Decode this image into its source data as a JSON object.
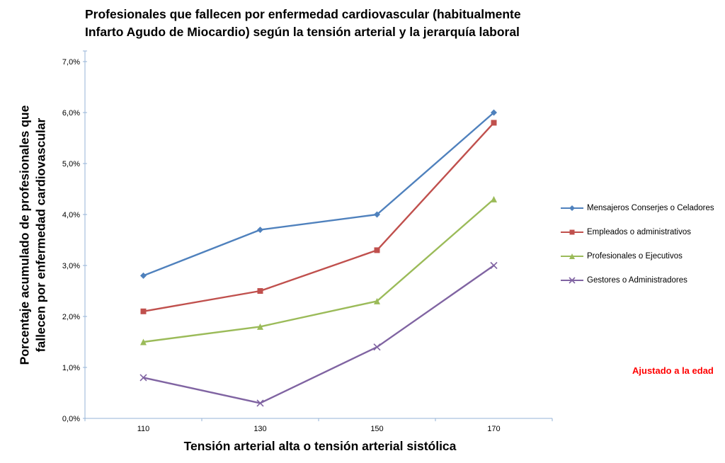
{
  "title": {
    "line1": "Profesionales que fallecen por enfermedad cardiovascular (habitualmente",
    "line2": "Infarto Agudo de Miocardio) según la tensión arterial y la jerarquía laboral"
  },
  "annotation": "Ajustado a la edad",
  "chart_data": {
    "type": "line",
    "title": "Profesionales que fallecen por enfermedad cardiovascular (habitualmente Infarto Agudo de Miocardio) según la tensión arterial y la jerarquía laboral",
    "categories": [
      "110",
      "130",
      "150",
      "170"
    ],
    "series": [
      {
        "name": "Mensajeros Conserjes o Celadores",
        "color": "#4F81BD",
        "marker": "diamond",
        "values": [
          2.8,
          3.7,
          4.0,
          6.0
        ]
      },
      {
        "name": "Empleados o administrativos",
        "color": "#C0504D",
        "marker": "square",
        "values": [
          2.1,
          2.5,
          3.3,
          5.8
        ]
      },
      {
        "name": "Profesionales o Ejecutivos",
        "color": "#9BBB59",
        "marker": "triangle",
        "values": [
          1.5,
          1.8,
          2.3,
          4.3
        ]
      },
      {
        "name": "Gestores o Administradores",
        "color": "#8064A2",
        "marker": "x",
        "values": [
          0.8,
          0.3,
          1.4,
          3.0
        ]
      }
    ],
    "xlabel": "Tensión arterial alta o tensión arterial sistólica",
    "ylabel_line1": "Porcentaje acumulado de profesionales que",
    "ylabel_line2": "fallecen por enfermedad cardiovascular",
    "ylim": [
      0,
      7
    ],
    "ytick_step": 1,
    "ytick_labels": [
      "0,0%",
      "1,0%",
      "2,0%",
      "3,0%",
      "4,0%",
      "5,0%",
      "6,0%",
      "7,0%"
    ],
    "xtick_labels": [
      "110",
      "130",
      "150",
      "170"
    ],
    "grid": false,
    "legend_position": "right",
    "axis_color": "#95B3D7",
    "annotation_color": "#FF0000"
  }
}
